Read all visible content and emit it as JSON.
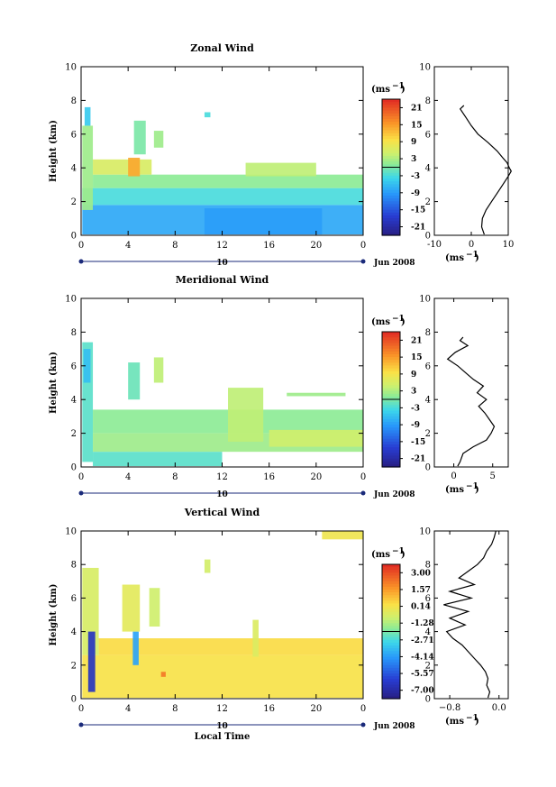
{
  "chart_data": [
    {
      "type": "heatmap",
      "title": "Zonal Wind",
      "ylabel": "Height (km)",
      "ylim": [
        0,
        10
      ],
      "xticks": [
        "0",
        "4",
        "8",
        "12",
        "16",
        "20",
        "0"
      ],
      "yticks": [
        "0",
        "2",
        "4",
        "6",
        "8",
        "10"
      ],
      "date_label": "10",
      "month_label": "Jun 2008",
      "colorbar": {
        "unit": "(ms",
        "unit_exp": "−1",
        "unit_close": ")",
        "ticks": [
          "21",
          "15",
          "9",
          "3",
          "-3",
          "-9",
          "-15",
          "-21"
        ]
      },
      "regions": [
        {
          "t0": 0.1,
          "t1": 24,
          "h0": 0.05,
          "h1": 1.8,
          "v": -8
        },
        {
          "t0": 0.1,
          "t1": 24,
          "h0": 1.8,
          "h1": 2.8,
          "v": -3
        },
        {
          "t0": 1.0,
          "t1": 24,
          "h0": 2.8,
          "h1": 3.6,
          "v": 1
        },
        {
          "t0": 1.0,
          "t1": 6.0,
          "h0": 3.6,
          "h1": 4.5,
          "v": 6
        },
        {
          "t0": 4.0,
          "t1": 5.0,
          "h0": 3.5,
          "h1": 4.6,
          "v": 14
        },
        {
          "t0": 0.1,
          "t1": 1.0,
          "h0": 1.5,
          "h1": 6.5,
          "v": 2
        },
        {
          "t0": 0.3,
          "t1": 0.8,
          "h0": 6.5,
          "h1": 7.6,
          "v": -5
        },
        {
          "t0": 4.5,
          "t1": 5.5,
          "h0": 4.8,
          "h1": 6.8,
          "v": 0
        },
        {
          "t0": 6.2,
          "t1": 7.0,
          "h0": 5.2,
          "h1": 6.2,
          "v": 2
        },
        {
          "t0": 10.5,
          "t1": 20.5,
          "h0": 0.05,
          "h1": 1.6,
          "v": -9
        },
        {
          "t0": 14.0,
          "t1": 20.0,
          "h0": 3.5,
          "h1": 4.3,
          "v": 4
        },
        {
          "t0": 10.5,
          "t1": 11.0,
          "h0": 7.0,
          "h1": 7.3,
          "v": -3
        }
      ],
      "profile": {
        "xlim": [
          -10,
          10
        ],
        "xticks": [
          "-10",
          "0",
          "10"
        ],
        "h": [
          0.05,
          0.5,
          1,
          1.5,
          2,
          2.5,
          3,
          3.5,
          3.8,
          4,
          4.3,
          4.6,
          5,
          5.5,
          6,
          6.5,
          7,
          7.5,
          7.7
        ],
        "v": [
          3.5,
          2.8,
          3,
          4,
          5.5,
          7,
          8.5,
          10,
          10.8,
          10.3,
          9.7,
          8.5,
          7,
          4.5,
          1.8,
          0,
          -1.5,
          -3,
          -2
        ]
      }
    },
    {
      "type": "heatmap",
      "title": "Meridional Wind",
      "ylabel": "Height (km)",
      "ylim": [
        0,
        10
      ],
      "xticks": [
        "0",
        "4",
        "8",
        "12",
        "16",
        "20",
        "0"
      ],
      "yticks": [
        "0",
        "2",
        "4",
        "6",
        "8",
        "10"
      ],
      "date_label": "10",
      "month_label": "Jun 2008",
      "colorbar": {
        "unit": "(ms",
        "unit_exp": "−1",
        "unit_close": ")",
        "ticks": [
          "21",
          "15",
          "9",
          "3",
          "-3",
          "-9",
          "-15",
          "-21"
        ]
      },
      "regions": [
        {
          "t0": 0.1,
          "t1": 1.0,
          "h0": 0.3,
          "h1": 7.4,
          "v": -2
        },
        {
          "t0": 0.2,
          "t1": 0.8,
          "h0": 5.0,
          "h1": 7.0,
          "v": -6
        },
        {
          "t0": 1.0,
          "t1": 24,
          "h0": 2.0,
          "h1": 3.4,
          "v": 1
        },
        {
          "t0": 1.0,
          "t1": 24,
          "h0": 0.9,
          "h1": 2.0,
          "v": 2
        },
        {
          "t0": 1.0,
          "t1": 12.0,
          "h0": 0.05,
          "h1": 0.9,
          "v": -2
        },
        {
          "t0": 12.5,
          "t1": 15.5,
          "h0": 1.5,
          "h1": 4.7,
          "v": 4
        },
        {
          "t0": 6.2,
          "t1": 7.0,
          "h0": 5.0,
          "h1": 6.5,
          "v": 4
        },
        {
          "t0": 4.0,
          "t1": 5.0,
          "h0": 4.0,
          "h1": 6.2,
          "v": -1
        },
        {
          "t0": 17.5,
          "t1": 22.5,
          "h0": 4.2,
          "h1": 4.4,
          "v": 2
        },
        {
          "t0": 16.0,
          "t1": 24,
          "h0": 1.2,
          "h1": 2.2,
          "v": 5
        }
      ],
      "profile": {
        "xlim": [
          -2.5,
          7
        ],
        "xticks": [
          "0",
          "5"
        ],
        "h": [
          0.05,
          0.3,
          0.8,
          1.2,
          1.6,
          2,
          2.4,
          2.8,
          3.2,
          3.6,
          4,
          4.4,
          4.8,
          5.2,
          5.6,
          6,
          6.4,
          6.8,
          7.2,
          7.5,
          7.7
        ],
        "v": [
          0.5,
          0.8,
          1.2,
          2.5,
          4.2,
          4.8,
          5.2,
          4.6,
          4.0,
          3.2,
          4.2,
          3.0,
          3.8,
          2.5,
          1.5,
          0.5,
          -0.8,
          0.2,
          1.8,
          0.8,
          1.2
        ]
      }
    },
    {
      "type": "heatmap",
      "title": "Vertical Wind",
      "ylabel": "Height (km)",
      "ylim": [
        0,
        10
      ],
      "xticks": [
        "0",
        "4",
        "8",
        "12",
        "16",
        "20",
        "0"
      ],
      "yticks": [
        "0",
        "2",
        "4",
        "6",
        "8",
        "10"
      ],
      "date_label": "10",
      "month_label": "Jun 2008",
      "xlabel": "Local Time",
      "colorbar": {
        "unit": "(ms",
        "unit_exp": "−1",
        "unit_close": ")",
        "ticks": [
          "3.00",
          "1.57",
          "0.14",
          "-1.28",
          "-2.71",
          "-4.14",
          "-5.57",
          "-7.00"
        ]
      },
      "regions": [
        {
          "t0": 0.1,
          "t1": 24,
          "h0": 0.05,
          "h1": 2.6,
          "v": 0.2
        },
        {
          "t0": 1.5,
          "t1": 24,
          "h0": 2.6,
          "h1": 3.6,
          "v": 0.4
        },
        {
          "t0": 0.1,
          "t1": 1.5,
          "h0": 2.6,
          "h1": 7.8,
          "v": -0.6
        },
        {
          "t0": 0.6,
          "t1": 1.2,
          "h0": 0.4,
          "h1": 4.0,
          "v": -6.5
        },
        {
          "t0": 4.4,
          "t1": 4.9,
          "h0": 2.0,
          "h1": 4.0,
          "v": -4.0
        },
        {
          "t0": 5.8,
          "t1": 6.7,
          "h0": 4.3,
          "h1": 6.6,
          "v": -0.8
        },
        {
          "t0": 3.5,
          "t1": 5.0,
          "h0": 4.0,
          "h1": 6.8,
          "v": -0.3
        },
        {
          "t0": 14.6,
          "t1": 15.1,
          "h0": 2.5,
          "h1": 4.7,
          "v": -0.5
        },
        {
          "t0": 6.8,
          "t1": 7.2,
          "h0": 1.3,
          "h1": 1.6,
          "v": 2.2
        },
        {
          "t0": 10.5,
          "t1": 11.0,
          "h0": 7.5,
          "h1": 8.3,
          "v": -0.7
        },
        {
          "t0": 20.5,
          "t1": 24,
          "h0": 9.5,
          "h1": 10,
          "v": 0.0
        }
      ],
      "profile": {
        "xlim": [
          -1.05,
          0.15
        ],
        "xticks": [
          "−0.8",
          "0.0"
        ],
        "h": [
          0.05,
          0.4,
          0.8,
          1.2,
          1.6,
          2.0,
          2.4,
          2.8,
          3.2,
          3.6,
          4.0,
          4.4,
          4.8,
          5.2,
          5.6,
          6.0,
          6.4,
          6.8,
          7.2,
          7.6,
          8.0,
          8.4,
          8.8,
          9.2,
          9.6,
          10.0
        ],
        "v": [
          -0.18,
          -0.15,
          -0.2,
          -0.18,
          -0.22,
          -0.3,
          -0.4,
          -0.5,
          -0.6,
          -0.75,
          -0.85,
          -0.55,
          -0.8,
          -0.5,
          -0.9,
          -0.45,
          -0.8,
          -0.4,
          -0.65,
          -0.5,
          -0.35,
          -0.25,
          -0.2,
          -0.12,
          -0.08,
          -0.05
        ]
      }
    }
  ]
}
